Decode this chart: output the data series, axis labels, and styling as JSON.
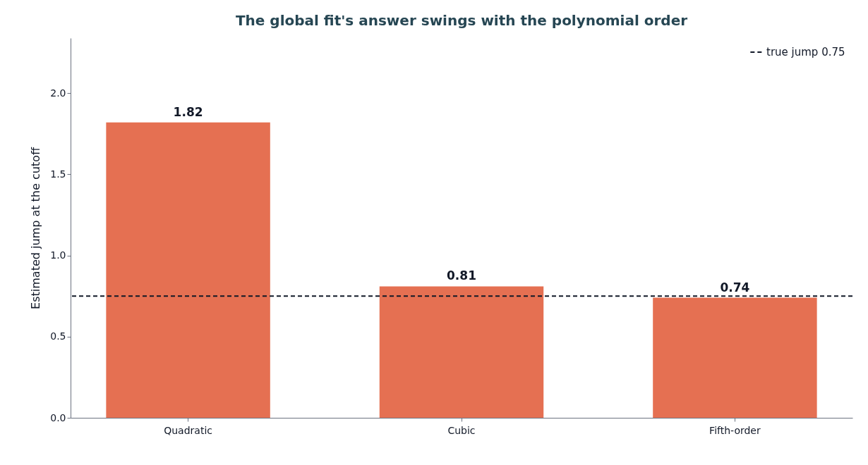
{
  "chart_data": {
    "type": "bar",
    "title": "The global fit's answer swings with the polynomial order",
    "ylabel": "Estimated jump at the cutoff",
    "categories": [
      "Quadratic",
      "Cubic",
      "Fifth-order"
    ],
    "series": [
      {
        "color": "#e57052",
        "values": [
          1.82,
          0.81,
          0.74
        ]
      }
    ],
    "ylim": [
      0,
      2.34
    ],
    "yticks": [
      {
        "value": 0,
        "label": "0.0"
      },
      {
        "value": 0.5,
        "label": "0.5"
      },
      {
        "value": 1,
        "label": "1.0"
      },
      {
        "value": 1.5,
        "label": "1.5"
      },
      {
        "value": 2,
        "label": "2.0"
      }
    ],
    "data_labels": true,
    "grid": false,
    "legend": "top right",
    "ref_lines": [
      {
        "axis": "y",
        "value": 0.75,
        "label": "true jump 0.75",
        "color": "#111827",
        "line_style": "dashed"
      }
    ]
  }
}
